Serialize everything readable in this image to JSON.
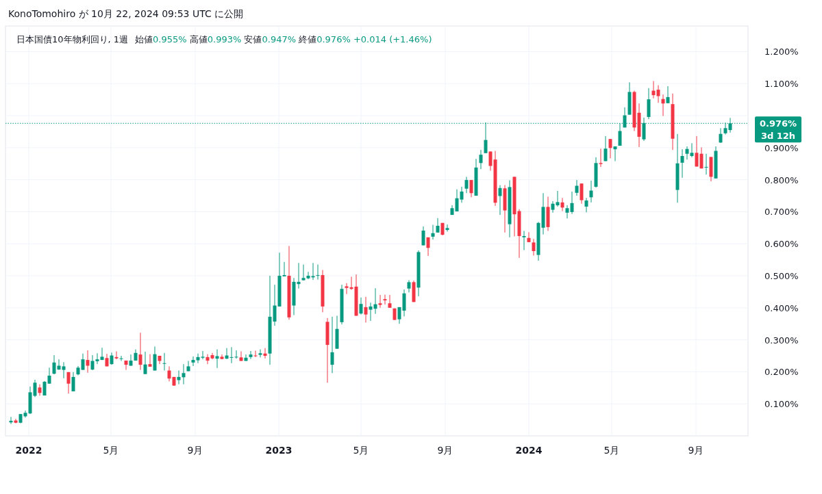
{
  "chart_data": {
    "type": "candlestick",
    "title": "日本国債10年物利回り, 1週",
    "subtitle": "始値0.955%  高値0.993%  安値0.947%  終値0.976%  +0.014 (+1.46%)",
    "annotations": [
      "KonoTomohiro が 10月 22, 2024 09:53 UTC に公開",
      "3d 12h"
    ],
    "x": [
      "2021-12-06",
      "2021-12-13",
      "2021-12-20",
      "2021-12-27",
      "2022-01-03",
      "2022-01-10",
      "2022-01-17",
      "2022-01-24",
      "2022-01-31",
      "2022-02-07",
      "2022-02-14",
      "2022-02-21",
      "2022-02-28",
      "2022-03-07",
      "2022-03-14",
      "2022-03-21",
      "2022-03-28",
      "2022-04-04",
      "2022-04-11",
      "2022-04-18",
      "2022-04-25",
      "2022-05-02",
      "2022-05-09",
      "2022-05-16",
      "2022-05-23",
      "2022-05-30",
      "2022-06-06",
      "2022-06-13",
      "2022-06-20",
      "2022-06-27",
      "2022-07-04",
      "2022-07-11",
      "2022-07-18",
      "2022-07-25",
      "2022-08-01",
      "2022-08-08",
      "2022-08-15",
      "2022-08-22",
      "2022-08-29",
      "2022-09-05",
      "2022-09-12",
      "2022-09-19",
      "2022-09-26",
      "2022-10-03",
      "2022-10-10",
      "2022-10-17",
      "2022-10-24",
      "2022-10-31",
      "2022-11-07",
      "2022-11-14",
      "2022-11-21",
      "2022-11-28",
      "2022-12-05",
      "2022-12-12",
      "2022-12-19",
      "2022-12-26",
      "2023-01-02",
      "2023-01-09",
      "2023-01-16",
      "2023-01-23",
      "2023-01-30",
      "2023-02-06",
      "2023-02-13",
      "2023-02-20",
      "2023-02-27",
      "2023-03-06",
      "2023-03-13",
      "2023-03-20",
      "2023-03-27",
      "2023-04-03",
      "2023-04-10",
      "2023-04-17",
      "2023-04-24",
      "2023-05-01",
      "2023-05-08",
      "2023-05-15",
      "2023-05-22",
      "2023-05-29",
      "2023-06-05",
      "2023-06-12",
      "2023-06-19",
      "2023-06-26",
      "2023-07-03",
      "2023-07-10",
      "2023-07-17",
      "2023-07-24",
      "2023-07-31",
      "2023-08-07",
      "2023-08-14",
      "2023-08-21",
      "2023-08-28",
      "2023-09-04",
      "2023-09-11",
      "2023-09-18",
      "2023-09-25",
      "2023-10-02",
      "2023-10-09",
      "2023-10-16",
      "2023-10-23",
      "2023-10-30",
      "2023-11-06",
      "2023-11-13",
      "2023-11-20",
      "2023-11-27",
      "2023-12-04",
      "2023-12-11",
      "2023-12-18",
      "2023-12-25",
      "2024-01-01",
      "2024-01-08",
      "2024-01-15",
      "2024-01-22",
      "2024-01-29",
      "2024-02-05",
      "2024-02-12",
      "2024-02-19",
      "2024-02-26",
      "2024-03-04",
      "2024-03-11",
      "2024-03-18",
      "2024-03-25",
      "2024-04-01",
      "2024-04-08",
      "2024-04-15",
      "2024-04-22",
      "2024-04-29",
      "2024-05-06",
      "2024-05-13",
      "2024-05-20",
      "2024-05-27",
      "2024-06-03",
      "2024-06-10",
      "2024-06-17",
      "2024-06-24",
      "2024-07-01",
      "2024-07-08",
      "2024-07-15",
      "2024-07-22",
      "2024-07-29",
      "2024-08-05",
      "2024-08-12",
      "2024-08-19",
      "2024-08-26",
      "2024-09-02",
      "2024-09-09",
      "2024-09-16",
      "2024-09-23",
      "2024-09-30",
      "2024-10-07",
      "2024-10-14",
      "2024-10-21"
    ],
    "ohlc": [
      [
        0.042,
        0.059,
        0.037,
        0.047
      ],
      [
        0.048,
        0.053,
        0.039,
        0.041
      ],
      [
        0.041,
        0.068,
        0.039,
        0.068
      ],
      [
        0.061,
        0.079,
        0.057,
        0.072
      ],
      [
        0.07,
        0.154,
        0.068,
        0.136
      ],
      [
        0.125,
        0.175,
        0.121,
        0.166
      ],
      [
        0.151,
        0.161,
        0.125,
        0.134
      ],
      [
        0.126,
        0.171,
        0.126,
        0.169
      ],
      [
        0.163,
        0.213,
        0.163,
        0.188
      ],
      [
        0.194,
        0.252,
        0.192,
        0.229
      ],
      [
        0.207,
        0.239,
        0.206,
        0.219
      ],
      [
        0.206,
        0.23,
        0.18,
        0.217
      ],
      [
        0.199,
        0.199,
        0.132,
        0.163
      ],
      [
        0.139,
        0.199,
        0.139,
        0.184
      ],
      [
        0.192,
        0.218,
        0.189,
        0.213
      ],
      [
        0.206,
        0.257,
        0.206,
        0.239
      ],
      [
        0.237,
        0.267,
        0.197,
        0.219
      ],
      [
        0.207,
        0.252,
        0.205,
        0.234
      ],
      [
        0.233,
        0.258,
        0.224,
        0.239
      ],
      [
        0.237,
        0.275,
        0.237,
        0.247
      ],
      [
        0.243,
        0.256,
        0.217,
        0.217
      ],
      [
        0.224,
        0.26,
        0.222,
        0.251
      ],
      [
        0.246,
        0.264,
        0.239,
        0.242
      ],
      [
        0.241,
        0.25,
        0.234,
        0.242
      ],
      [
        0.235,
        0.235,
        0.206,
        0.222
      ],
      [
        0.219,
        0.254,
        0.219,
        0.235
      ],
      [
        0.235,
        0.27,
        0.235,
        0.259
      ],
      [
        0.254,
        0.322,
        0.206,
        0.222
      ],
      [
        0.193,
        0.263,
        0.193,
        0.223
      ],
      [
        0.224,
        0.255,
        0.216,
        0.216
      ],
      [
        0.204,
        0.279,
        0.204,
        0.255
      ],
      [
        0.25,
        0.25,
        0.224,
        0.234
      ],
      [
        0.226,
        0.259,
        0.204,
        0.227
      ],
      [
        0.204,
        0.217,
        0.17,
        0.179
      ],
      [
        0.184,
        0.184,
        0.156,
        0.157
      ],
      [
        0.174,
        0.204,
        0.161,
        0.184
      ],
      [
        0.183,
        0.224,
        0.161,
        0.196
      ],
      [
        0.202,
        0.234,
        0.202,
        0.217
      ],
      [
        0.229,
        0.248,
        0.218,
        0.237
      ],
      [
        0.236,
        0.257,
        0.227,
        0.246
      ],
      [
        0.244,
        0.265,
        0.239,
        0.247
      ],
      [
        0.246,
        0.255,
        0.224,
        0.235
      ],
      [
        0.252,
        0.259,
        0.239,
        0.242
      ],
      [
        0.241,
        0.27,
        0.212,
        0.249
      ],
      [
        0.247,
        0.254,
        0.239,
        0.24
      ],
      [
        0.241,
        0.274,
        0.24,
        0.251
      ],
      [
        0.245,
        0.277,
        0.227,
        0.246
      ],
      [
        0.246,
        0.267,
        0.241,
        0.247
      ],
      [
        0.245,
        0.264,
        0.234,
        0.234
      ],
      [
        0.234,
        0.254,
        0.234,
        0.244
      ],
      [
        0.246,
        0.265,
        0.24,
        0.254
      ],
      [
        0.251,
        0.266,
        0.246,
        0.249
      ],
      [
        0.253,
        0.27,
        0.245,
        0.258
      ],
      [
        0.257,
        0.274,
        0.242,
        0.25
      ],
      [
        0.257,
        0.5,
        0.222,
        0.372
      ],
      [
        0.357,
        0.472,
        0.344,
        0.407
      ],
      [
        0.404,
        0.572,
        0.404,
        0.5
      ],
      [
        0.498,
        0.543,
        0.498,
        0.502
      ],
      [
        0.5,
        0.593,
        0.363,
        0.37
      ],
      [
        0.407,
        0.493,
        0.377,
        0.481
      ],
      [
        0.474,
        0.54,
        0.46,
        0.481
      ],
      [
        0.486,
        0.535,
        0.485,
        0.493
      ],
      [
        0.492,
        0.512,
        0.489,
        0.5
      ],
      [
        0.495,
        0.54,
        0.487,
        0.499
      ],
      [
        0.5,
        0.535,
        0.488,
        0.502
      ],
      [
        0.502,
        0.518,
        0.386,
        0.404
      ],
      [
        0.356,
        0.368,
        0.166,
        0.284
      ],
      [
        0.222,
        0.372,
        0.196,
        0.261
      ],
      [
        0.272,
        0.375,
        0.272,
        0.334
      ],
      [
        0.355,
        0.472,
        0.348,
        0.459
      ],
      [
        0.467,
        0.477,
        0.443,
        0.462
      ],
      [
        0.464,
        0.497,
        0.456,
        0.459
      ],
      [
        0.466,
        0.504,
        0.375,
        0.375
      ],
      [
        0.382,
        0.432,
        0.379,
        0.412
      ],
      [
        0.402,
        0.434,
        0.354,
        0.379
      ],
      [
        0.394,
        0.416,
        0.359,
        0.404
      ],
      [
        0.397,
        0.461,
        0.381,
        0.411
      ],
      [
        0.414,
        0.44,
        0.4,
        0.409
      ],
      [
        0.427,
        0.441,
        0.41,
        0.423
      ],
      [
        0.414,
        0.44,
        0.4,
        0.4
      ],
      [
        0.398,
        0.398,
        0.362,
        0.362
      ],
      [
        0.364,
        0.402,
        0.35,
        0.402
      ],
      [
        0.391,
        0.457,
        0.373,
        0.445
      ],
      [
        0.46,
        0.486,
        0.448,
        0.48
      ],
      [
        0.48,
        0.485,
        0.418,
        0.418
      ],
      [
        0.463,
        0.579,
        0.436,
        0.574
      ],
      [
        0.595,
        0.654,
        0.595,
        0.641
      ],
      [
        0.62,
        0.62,
        0.562,
        0.587
      ],
      [
        0.622,
        0.659,
        0.613,
        0.633
      ],
      [
        0.635,
        0.68,
        0.635,
        0.656
      ],
      [
        0.665,
        0.665,
        0.626,
        0.628
      ],
      [
        0.643,
        0.66,
        0.638,
        0.649
      ],
      [
        0.69,
        0.72,
        0.69,
        0.711
      ],
      [
        0.701,
        0.77,
        0.701,
        0.742
      ],
      [
        0.738,
        0.778,
        0.728,
        0.763
      ],
      [
        0.772,
        0.809,
        0.758,
        0.799
      ],
      [
        0.799,
        0.799,
        0.745,
        0.758
      ],
      [
        0.75,
        0.865,
        0.75,
        0.838
      ],
      [
        0.852,
        0.893,
        0.833,
        0.878
      ],
      [
        0.883,
        0.979,
        0.883,
        0.924
      ],
      [
        0.888,
        0.888,
        0.828,
        0.843
      ],
      [
        0.863,
        0.89,
        0.718,
        0.728
      ],
      [
        0.749,
        0.783,
        0.69,
        0.774
      ],
      [
        0.773,
        0.783,
        0.635,
        0.704
      ],
      [
        0.661,
        0.798,
        0.62,
        0.777
      ],
      [
        0.809,
        0.809,
        0.623,
        0.692
      ],
      [
        0.702,
        0.708,
        0.556,
        0.624
      ],
      [
        0.62,
        0.64,
        0.58,
        0.624
      ],
      [
        0.618,
        0.636,
        0.605,
        0.605
      ],
      [
        0.604,
        0.615,
        0.563,
        0.577
      ],
      [
        0.565,
        0.668,
        0.547,
        0.665
      ],
      [
        0.65,
        0.758,
        0.629,
        0.715
      ],
      [
        0.715,
        0.747,
        0.64,
        0.652
      ],
      [
        0.706,
        0.733,
        0.697,
        0.725
      ],
      [
        0.72,
        0.765,
        0.716,
        0.73
      ],
      [
        0.729,
        0.743,
        0.702,
        0.713
      ],
      [
        0.697,
        0.72,
        0.679,
        0.711
      ],
      [
        0.699,
        0.763,
        0.693,
        0.727
      ],
      [
        0.759,
        0.799,
        0.75,
        0.781
      ],
      [
        0.788,
        0.788,
        0.725,
        0.736
      ],
      [
        0.716,
        0.743,
        0.698,
        0.735
      ],
      [
        0.745,
        0.797,
        0.729,
        0.766
      ],
      [
        0.778,
        0.87,
        0.775,
        0.852
      ],
      [
        0.852,
        0.897,
        0.84,
        0.849
      ],
      [
        0.858,
        0.936,
        0.858,
        0.897
      ],
      [
        0.927,
        0.927,
        0.867,
        0.899
      ],
      [
        0.895,
        0.904,
        0.858,
        0.904
      ],
      [
        0.906,
        0.976,
        0.906,
        0.952
      ],
      [
        0.963,
        1.026,
        0.963,
        1.001
      ],
      [
        1.003,
        1.104,
        1.003,
        1.074
      ],
      [
        1.074,
        1.078,
        0.952,
        0.963
      ],
      [
        1.009,
        1.038,
        0.902,
        0.934
      ],
      [
        0.926,
        0.994,
        0.921,
        0.977
      ],
      [
        0.996,
        1.086,
        0.989,
        1.051
      ],
      [
        1.078,
        1.108,
        1.054,
        1.064
      ],
      [
        1.081,
        1.095,
        1.04,
        1.061
      ],
      [
        1.052,
        1.066,
        0.999,
        1.038
      ],
      [
        1.039,
        1.092,
        1.039,
        1.058
      ],
      [
        1.036,
        1.069,
        0.893,
        0.928
      ],
      [
        0.768,
        0.943,
        0.728,
        0.851
      ],
      [
        0.853,
        0.895,
        0.806,
        0.874
      ],
      [
        0.881,
        0.904,
        0.863,
        0.896
      ],
      [
        0.874,
        0.914,
        0.87,
        0.884
      ],
      [
        0.884,
        0.936,
        0.841,
        0.841
      ],
      [
        0.881,
        0.901,
        0.835,
        0.835
      ],
      [
        0.84,
        0.881,
        0.816,
        0.84
      ],
      [
        0.871,
        0.871,
        0.795,
        0.809
      ],
      [
        0.804,
        0.904,
        0.804,
        0.89
      ],
      [
        0.916,
        0.961,
        0.915,
        0.943
      ],
      [
        0.945,
        0.978,
        0.941,
        0.961
      ],
      [
        0.955,
        0.993,
        0.947,
        0.976
      ]
    ],
    "xlim": [
      "2021-11-28",
      "2024-11-16"
    ],
    "xticks": [
      {
        "value": "2022-01-01",
        "label": "2022"
      },
      {
        "value": "2022-05-01",
        "label": "5月"
      },
      {
        "value": "2022-09-01",
        "label": "9月"
      },
      {
        "value": "2023-01-01",
        "label": "2023"
      },
      {
        "value": "2023-05-01",
        "label": "5月"
      },
      {
        "value": "2023-09-01",
        "label": "9月"
      },
      {
        "value": "2024-01-01",
        "label": "2024"
      },
      {
        "value": "2024-05-01",
        "label": "5月"
      },
      {
        "value": "2024-09-01",
        "label": "9月"
      }
    ],
    "ylim": [
      0,
      1.28
    ],
    "yticks": [
      {
        "value": 0.1,
        "label": "0.100%"
      },
      {
        "value": 0.2,
        "label": "0.200%"
      },
      {
        "value": 0.3,
        "label": "0.300%"
      },
      {
        "value": 0.4,
        "label": "0.400%"
      },
      {
        "value": 0.5,
        "label": "0.500%"
      },
      {
        "value": 0.6,
        "label": "0.600%"
      },
      {
        "value": 0.7,
        "label": "0.700%"
      },
      {
        "value": 0.8,
        "label": "0.800%"
      },
      {
        "value": 0.9,
        "label": "0.900%"
      },
      {
        "value": 1.0,
        "label": null
      },
      {
        "value": 1.1,
        "label": "1.100%"
      },
      {
        "value": 1.2,
        "label": "1.200%"
      }
    ],
    "ref_lines": [
      {
        "axis": "y",
        "value": 0.976,
        "label": "0.976%",
        "color": "#089981",
        "line_style": "dotted"
      }
    ],
    "grid": true
  }
}
